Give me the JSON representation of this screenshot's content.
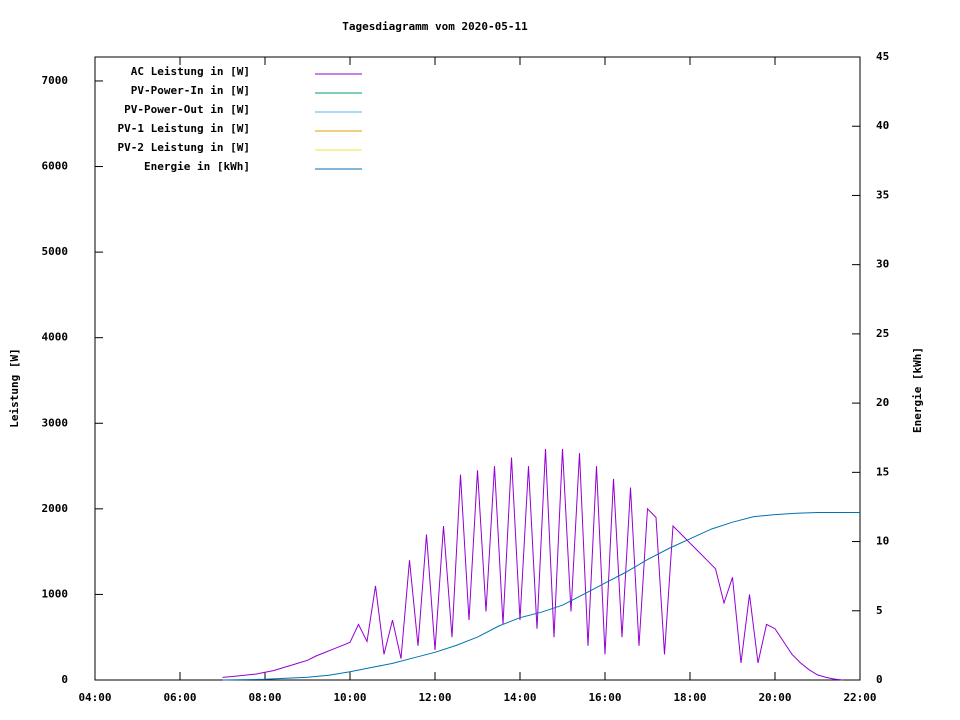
{
  "chart_data": {
    "type": "line",
    "title": "Tagesdiagramm vom 2020-05-11",
    "ylabel": "Leistung [W]",
    "y2label": "Energie [kWh]",
    "xlim": [
      4,
      22
    ],
    "xticks": [
      {
        "value": 4,
        "label": "04:00"
      },
      {
        "value": 6,
        "label": "06:00"
      },
      {
        "value": 8,
        "label": "08:00"
      },
      {
        "value": 10,
        "label": "10:00"
      },
      {
        "value": 12,
        "label": "12:00"
      },
      {
        "value": 14,
        "label": "14:00"
      },
      {
        "value": 16,
        "label": "16:00"
      },
      {
        "value": 18,
        "label": "18:00"
      },
      {
        "value": 20,
        "label": "20:00"
      },
      {
        "value": 22,
        "label": "22:00"
      }
    ],
    "ylim": [
      0,
      7280
    ],
    "yticks": [
      0,
      1000,
      2000,
      3000,
      4000,
      5000,
      6000,
      7000
    ],
    "y2lim": [
      0,
      45
    ],
    "y2ticks": [
      0,
      5,
      10,
      15,
      20,
      25,
      30,
      35,
      40,
      45
    ],
    "legend": "top-left",
    "series": [
      {
        "name": "AC Leistung in [W]",
        "color": "#9400d3",
        "x": [
          7.0,
          7.2,
          7.4,
          7.6,
          7.8,
          8.0,
          8.2,
          8.4,
          8.6,
          8.8,
          9.0,
          9.2,
          9.4,
          9.6,
          9.8,
          10.0,
          10.2,
          10.4,
          10.6,
          10.8,
          11.0,
          11.2,
          11.4,
          11.6,
          11.8,
          12.0,
          12.2,
          12.4,
          12.6,
          12.8,
          13.0,
          13.2,
          13.4,
          13.6,
          13.8,
          14.0,
          14.2,
          14.4,
          14.6,
          14.8,
          15.0,
          15.2,
          15.4,
          15.6,
          15.8,
          16.0,
          16.2,
          16.4,
          16.6,
          16.8,
          17.0,
          17.2,
          17.4,
          17.6,
          17.8,
          18.0,
          18.2,
          18.4,
          18.6,
          18.8,
          19.0,
          19.2,
          19.4,
          19.6,
          19.8,
          20.0,
          20.2,
          20.4,
          20.6,
          20.8,
          21.0,
          21.2,
          21.4,
          21.6
        ],
        "values": [
          30,
          40,
          50,
          60,
          70,
          90,
          110,
          140,
          170,
          200,
          230,
          280,
          320,
          360,
          400,
          440,
          650,
          450,
          1100,
          300,
          700,
          250,
          1400,
          400,
          1700,
          350,
          1800,
          500,
          2400,
          700,
          2450,
          800,
          2500,
          650,
          2600,
          700,
          2500,
          600,
          2700,
          500,
          2700,
          800,
          2650,
          400,
          2500,
          300,
          2350,
          500,
          2250,
          400,
          2000,
          1900,
          300,
          1800,
          1700,
          1600,
          1500,
          1400,
          1300,
          900,
          1200,
          200,
          1000,
          200,
          650,
          600,
          450,
          300,
          200,
          120,
          60,
          30,
          10,
          0
        ]
      },
      {
        "name": "PV-Power-In in [W]",
        "color": "#009e73",
        "x": [],
        "values": []
      },
      {
        "name": "PV-Power-Out in [W]",
        "color": "#56b4e9",
        "x": [],
        "values": []
      },
      {
        "name": "PV-1 Leistung in [W]",
        "color": "#e69f00",
        "x": [],
        "values": []
      },
      {
        "name": "PV-2 Leistung in [W]",
        "color": "#f0e442",
        "x": [],
        "values": []
      },
      {
        "name": "Energie in [kWh]",
        "color": "#0072b2",
        "axis": "y2",
        "x": [
          7.0,
          8.0,
          9.0,
          9.5,
          10.0,
          10.5,
          11.0,
          11.5,
          12.0,
          12.5,
          13.0,
          13.5,
          14.0,
          14.5,
          15.0,
          15.5,
          16.0,
          16.5,
          17.0,
          17.5,
          18.0,
          18.5,
          19.0,
          19.5,
          20.0,
          20.5,
          21.0,
          22.0
        ],
        "values": [
          0,
          0.05,
          0.2,
          0.35,
          0.6,
          0.9,
          1.2,
          1.6,
          2.0,
          2.5,
          3.1,
          3.9,
          4.5,
          4.9,
          5.4,
          6.2,
          7.0,
          7.8,
          8.7,
          9.5,
          10.2,
          10.9,
          11.4,
          11.8,
          11.95,
          12.05,
          12.1,
          12.1
        ]
      }
    ]
  }
}
